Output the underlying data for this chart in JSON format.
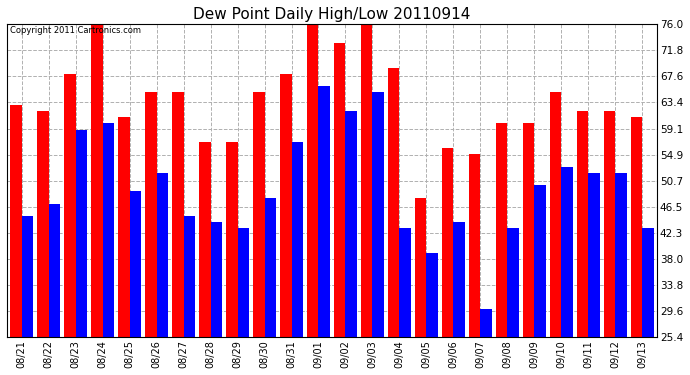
{
  "title": "Dew Point Daily High/Low 20110914",
  "copyright": "Copyright 2011 Cartronics.com",
  "categories": [
    "08/21",
    "08/22",
    "08/23",
    "08/24",
    "08/25",
    "08/26",
    "08/27",
    "08/28",
    "08/29",
    "08/30",
    "08/31",
    "09/01",
    "09/02",
    "09/03",
    "09/04",
    "09/05",
    "09/06",
    "09/07",
    "09/08",
    "09/09",
    "09/10",
    "09/11",
    "09/12",
    "09/13"
  ],
  "high_values": [
    63.0,
    62.0,
    68.0,
    76.0,
    61.0,
    65.0,
    65.0,
    57.0,
    57.0,
    65.0,
    68.0,
    76.0,
    73.0,
    76.0,
    69.0,
    48.0,
    56.0,
    55.0,
    60.0,
    60.0,
    65.0,
    62.0,
    62.0,
    61.0
  ],
  "low_values": [
    45.0,
    47.0,
    59.0,
    60.0,
    49.0,
    52.0,
    45.0,
    44.0,
    43.0,
    48.0,
    57.0,
    66.0,
    62.0,
    65.0,
    43.0,
    39.0,
    44.0,
    30.0,
    43.0,
    50.0,
    53.0,
    52.0,
    52.0,
    43.0
  ],
  "high_color": "#ff0000",
  "low_color": "#0000ff",
  "bg_color": "#ffffff",
  "plot_bg_color": "#ffffff",
  "grid_color": "#b0b0b0",
  "title_fontsize": 11,
  "yticks": [
    25.4,
    29.6,
    33.8,
    38.0,
    42.3,
    46.5,
    50.7,
    54.9,
    59.1,
    63.4,
    67.6,
    71.8,
    76.0
  ],
  "ylim": [
    25.4,
    76.0
  ],
  "bar_bottom": 25.4
}
